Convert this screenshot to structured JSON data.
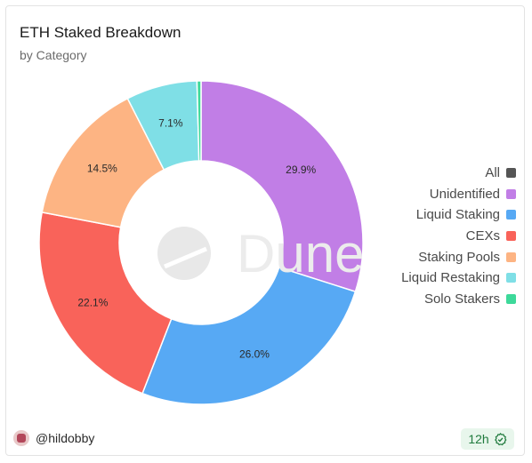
{
  "header": {
    "title": "ETH Staked Breakdown",
    "subtitle": "by Category"
  },
  "watermark": "Dune",
  "chart_data": {
    "type": "pie",
    "donut": true,
    "slices": [
      {
        "name": "Unidentified",
        "value": 29.9,
        "label": "29.9%",
        "color": "#c17ee6"
      },
      {
        "name": "Liquid Staking",
        "value": 26.0,
        "label": "26.0%",
        "color": "#57a9f4"
      },
      {
        "name": "CEXs",
        "value": 22.1,
        "label": "22.1%",
        "color": "#f9635a"
      },
      {
        "name": "Staking Pools",
        "value": 14.5,
        "label": "14.5%",
        "color": "#fdb483"
      },
      {
        "name": "Liquid Restaking",
        "value": 7.1,
        "label": "7.1%",
        "color": "#7fdfe6"
      },
      {
        "name": "Solo Stakers",
        "value": 0.4,
        "label": "",
        "color": "#3dd99a"
      }
    ],
    "legend": {
      "placement": "right",
      "items": [
        {
          "label": "All",
          "color": "#555555"
        },
        {
          "label": "Unidentified",
          "color": "#c17ee6"
        },
        {
          "label": "Liquid Staking",
          "color": "#57a9f4"
        },
        {
          "label": "CEXs",
          "color": "#f9635a"
        },
        {
          "label": "Staking Pools",
          "color": "#fdb483"
        },
        {
          "label": "Liquid Restaking",
          "color": "#7fdfe6"
        },
        {
          "label": "Solo Stakers",
          "color": "#3dd99a"
        }
      ]
    }
  },
  "footer": {
    "author": "@hildobby",
    "refresh": "12h"
  }
}
